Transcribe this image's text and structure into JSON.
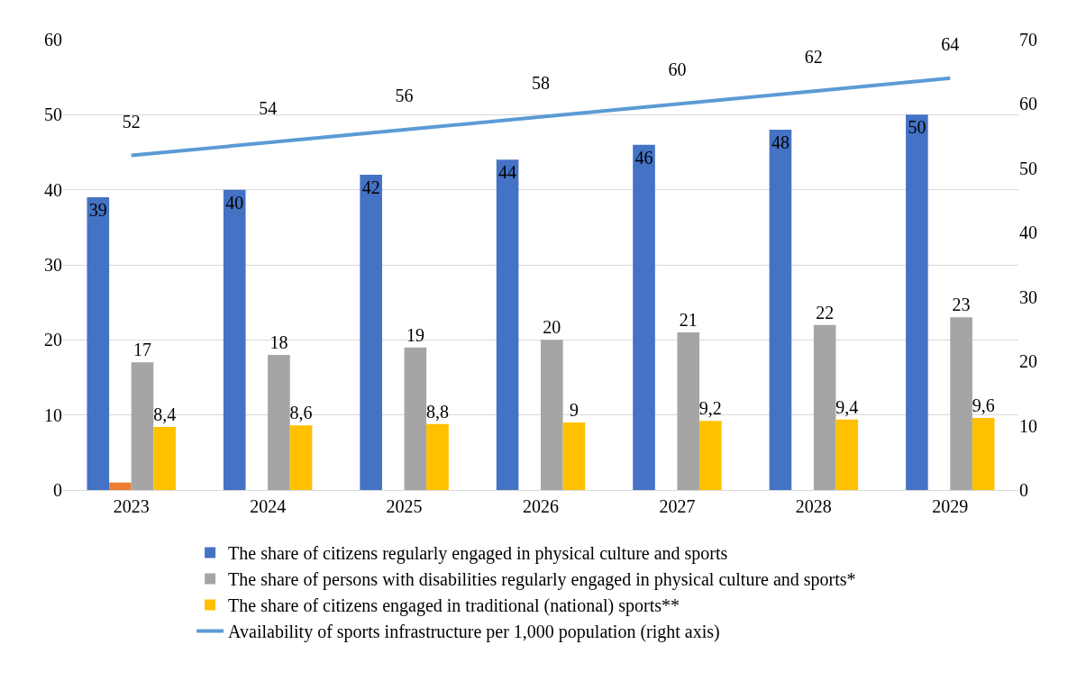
{
  "chart_data": {
    "type": "bar",
    "categories": [
      "2023",
      "2024",
      "2025",
      "2026",
      "2027",
      "2028",
      "2029"
    ],
    "series": [
      {
        "name": "The share of citizens regularly engaged in physical culture and sports",
        "color": "#4472c4",
        "values": [
          39,
          40,
          42,
          44,
          46,
          48,
          50
        ],
        "value_labels": [
          "39",
          "40",
          "42",
          "44",
          "46",
          "48",
          "50"
        ]
      },
      {
        "color": "#ed7d31",
        "values": [
          1,
          null,
          null,
          null,
          null,
          null,
          null
        ]
      },
      {
        "name": "The share of persons with disabilities regularly engaged in physical culture and sports*",
        "color": "#a5a5a5",
        "values": [
          17,
          18,
          19,
          20,
          21,
          22,
          23
        ],
        "value_labels": [
          "17",
          "18",
          "19",
          "20",
          "21",
          "22",
          "23"
        ]
      },
      {
        "name": "The share of citizens engaged in traditional (national) sports**",
        "color": "#ffc000",
        "values": [
          8.4,
          8.6,
          8.8,
          9,
          9.2,
          9.4,
          9.6
        ],
        "value_labels": [
          "8,4",
          "8,6",
          "8,8",
          "9",
          "9,2",
          "9,4",
          "9,6"
        ]
      },
      {
        "name": "Availability of sports infrastructure per 1,000 population (right axis)",
        "type": "line",
        "axis": "y2",
        "color": "#5b9bd5",
        "values": [
          52,
          54,
          56,
          58,
          60,
          62,
          64
        ],
        "value_labels": [
          "52",
          "54",
          "56",
          "58",
          "60",
          "62",
          "64"
        ]
      }
    ],
    "ylim": [
      0,
      60
    ],
    "yticks": [
      0,
      10,
      20,
      30,
      40,
      50,
      60
    ],
    "y2lim": [
      0,
      70
    ],
    "y2ticks": [
      0,
      10,
      20,
      30,
      40,
      50,
      60,
      70
    ],
    "grid": "y",
    "legend": "bottom",
    "marker": "none"
  }
}
